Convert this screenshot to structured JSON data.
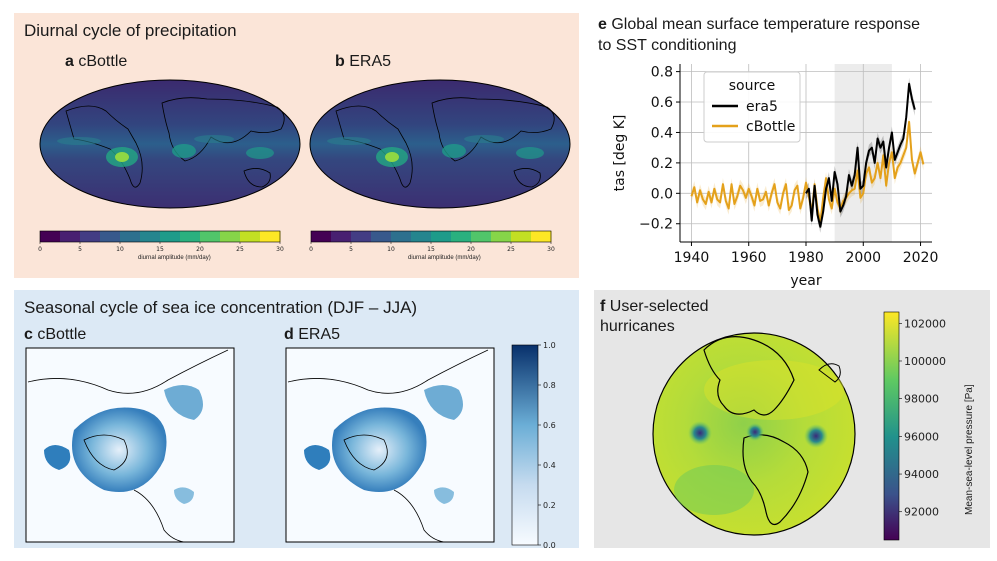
{
  "colors": {
    "panel_top_left_bg": "#fbe5d8",
    "panel_bottom_left_bg": "#dce9f5",
    "panel_right_bottom_bg": "#e6e6e6",
    "era5_line": "#000000",
    "cbottle_line": "#e4a11b",
    "shade_band": "#ececec"
  },
  "precip": {
    "title": "Diurnal cycle of precipitation",
    "maps": [
      {
        "letter": "a",
        "name": "cBottle"
      },
      {
        "letter": "b",
        "name": "ERA5"
      }
    ],
    "colorbar": {
      "ticks": [
        "0",
        "5",
        "10",
        "15",
        "20",
        "25",
        "30"
      ],
      "label": "diurnal amplitude (mm/day)",
      "colors": [
        "#440154",
        "#482071",
        "#433d84",
        "#38598c",
        "#2d708e",
        "#25858e",
        "#1e9b8a",
        "#2ab07f",
        "#51c56a",
        "#86d549",
        "#c2df23",
        "#fde725"
      ]
    }
  },
  "seaice": {
    "title": "Seasonal cycle of sea ice concentration (DJF – JJA)",
    "maps": [
      {
        "letter": "c",
        "name": "cBottle"
      },
      {
        "letter": "d",
        "name": "ERA5"
      }
    ],
    "colorbar": {
      "ticks": [
        "1.0",
        "0.8",
        "0.6",
        "0.4",
        "0.2",
        "0.0"
      ]
    }
  },
  "hurricanes": {
    "letter": "f",
    "title_line1": "User-selected",
    "title_line2": "hurricanes",
    "colorbar": {
      "ticks": [
        "102000",
        "100000",
        "98000",
        "96000",
        "94000",
        "92000"
      ],
      "label": "Mean-sea-level pressure [Pa]"
    }
  },
  "chart_data": {
    "type": "line",
    "letter": "e",
    "title_line1": "Global mean surface temperature response",
    "title_line2": "to SST conditioning",
    "xlabel": "year",
    "ylabel": "tas [deg K]",
    "xlim": [
      1936,
      2024
    ],
    "ylim": [
      -0.32,
      0.85
    ],
    "xticks": [
      1940,
      1960,
      1980,
      2000,
      2020
    ],
    "yticks": [
      -0.2,
      0.0,
      0.2,
      0.4,
      0.6,
      0.8
    ],
    "ytick_labels": [
      "−0.2",
      "0.0",
      "0.2",
      "0.4",
      "0.6",
      "0.8"
    ],
    "shaded_span": [
      1990,
      2010
    ],
    "legend": {
      "title": "source",
      "position": "upper-left"
    },
    "series": [
      {
        "name": "era5",
        "x": [
          1980,
          1981,
          1982,
          1983,
          1984,
          1985,
          1986,
          1987,
          1988,
          1989,
          1990,
          1991,
          1992,
          1993,
          1994,
          1995,
          1996,
          1997,
          1998,
          1999,
          2000,
          2001,
          2002,
          2003,
          2004,
          2005,
          2006,
          2007,
          2008,
          2009,
          2010,
          2011,
          2012,
          2013,
          2014,
          2015,
          2016,
          2017,
          2018
        ],
        "y": [
          0.0,
          0.03,
          -0.18,
          0.05,
          -0.14,
          -0.22,
          -0.12,
          0.03,
          0.1,
          -0.05,
          0.14,
          0.06,
          -0.12,
          -0.08,
          -0.02,
          0.12,
          0.05,
          0.12,
          0.3,
          0.03,
          0.05,
          0.2,
          0.28,
          0.3,
          0.2,
          0.36,
          0.3,
          0.34,
          0.17,
          0.3,
          0.4,
          0.22,
          0.27,
          0.32,
          0.36,
          0.5,
          0.72,
          0.62,
          0.55
        ]
      },
      {
        "name": "cBottle",
        "x": [
          1940,
          1941,
          1942,
          1943,
          1944,
          1945,
          1946,
          1947,
          1948,
          1949,
          1950,
          1951,
          1952,
          1953,
          1954,
          1955,
          1956,
          1957,
          1958,
          1959,
          1960,
          1961,
          1962,
          1963,
          1964,
          1965,
          1966,
          1967,
          1968,
          1969,
          1970,
          1971,
          1972,
          1973,
          1974,
          1975,
          1976,
          1977,
          1978,
          1979,
          1980,
          1981,
          1982,
          1983,
          1984,
          1985,
          1986,
          1987,
          1988,
          1989,
          1990,
          1991,
          1992,
          1993,
          1994,
          1995,
          1996,
          1997,
          1998,
          1999,
          2000,
          2001,
          2002,
          2003,
          2004,
          2005,
          2006,
          2007,
          2008,
          2009,
          2010,
          2011,
          2012,
          2013,
          2014,
          2015,
          2016,
          2017,
          2018,
          2019,
          2020,
          2021
        ],
        "y": [
          -0.02,
          0.04,
          -0.06,
          0.02,
          -0.04,
          -0.07,
          0.01,
          -0.06,
          0.03,
          -0.04,
          -0.06,
          0.06,
          -0.05,
          -0.1,
          0.06,
          -0.07,
          -0.02,
          0.05,
          0.02,
          -0.03,
          0.03,
          -0.02,
          -0.08,
          0.03,
          -0.05,
          -0.04,
          0.01,
          -0.08,
          0.0,
          0.06,
          -0.06,
          -0.1,
          0.0,
          0.06,
          -0.11,
          -0.08,
          0.02,
          0.05,
          -0.1,
          -0.03,
          0.07,
          -0.02,
          -0.13,
          0.06,
          -0.1,
          -0.19,
          -0.03,
          0.1,
          -0.04,
          -0.1,
          0.03,
          -0.06,
          -0.1,
          -0.05,
          -0.03,
          0.0,
          0.02,
          0.03,
          0.15,
          -0.03,
          0.0,
          0.13,
          0.17,
          0.07,
          0.1,
          0.2,
          0.1,
          0.25,
          0.05,
          0.2,
          0.27,
          0.1,
          0.17,
          0.2,
          0.25,
          0.3,
          0.47,
          0.22,
          0.13,
          0.2,
          0.27,
          0.19
        ]
      }
    ]
  }
}
